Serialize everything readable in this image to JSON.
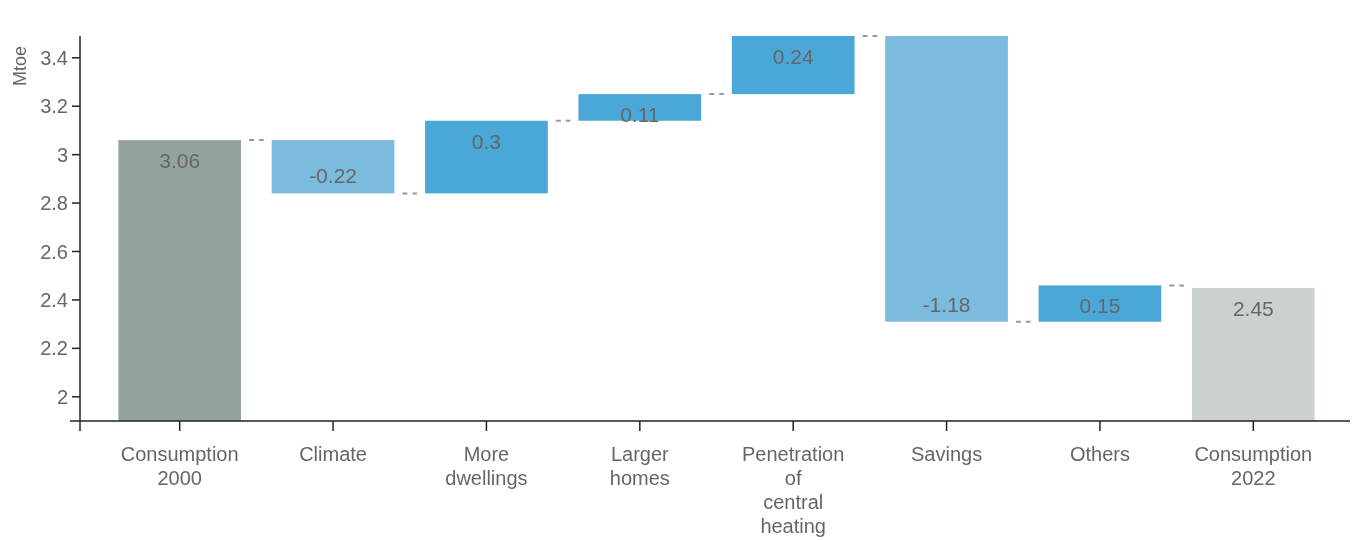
{
  "chart_data": {
    "type": "bar",
    "ylabel": "Mtoe",
    "categories": [
      "Consumption 2000",
      "Climate",
      "More dwellings",
      "Larger homes",
      "Penetration of central heating",
      "Savings",
      "Others",
      "Consumption 2022"
    ],
    "values": [
      3.06,
      -0.22,
      0.3,
      0.11,
      0.24,
      -1.18,
      0.15,
      2.45
    ],
    "base": [
      null,
      3.06,
      2.84,
      3.14,
      3.25,
      3.49,
      2.31,
      null
    ],
    "colors": [
      "#95a39d",
      "#7bbbdd",
      "#4aa8d8",
      "#4aa8d8",
      "#4aa8d8",
      "#7bbbdd",
      "#4aa8d8",
      "#cbd1ce"
    ],
    "ylim": [
      1.9,
      3.49
    ],
    "yticks": [
      2,
      2.2,
      2.4,
      2.6,
      2.8,
      3,
      3.2,
      3.4
    ],
    "data_labels": true
  }
}
